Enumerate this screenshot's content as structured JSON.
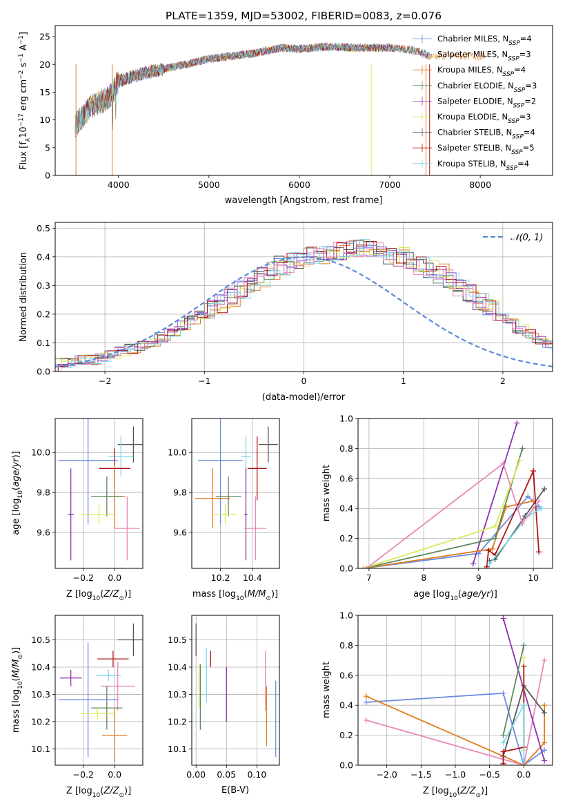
{
  "colors": {
    "chabrier_miles": "#6a8be0",
    "salpeter_miles": "#a061cf",
    "kroupa_miles": "#e07c1f",
    "chabrier_elodie": "#5e8a60",
    "salpeter_elodie": "#8e2fb0",
    "kroupa_elodie": "#d6ea58",
    "chabrier_stelib": "#555555",
    "salpeter_stelib": "#b01414",
    "kroupa_stelib": "#78d8e8",
    "pink": "#e887b8",
    "gauss": "#5a8ad6",
    "grid": "#b0b0b0"
  },
  "chart_data": [
    {
      "id": "spectrum",
      "type": "line",
      "title": "PLATE=1359, MJD=53002, FIBERID=0083, z=0.076",
      "xlabel": "wavelength [Angstrom, rest frame]",
      "ylabel": "Flux [f_λ 10^-17 erg cm^-2 s^-1 A^-1]",
      "xlim": [
        3300,
        8800
      ],
      "ylim": [
        0,
        27
      ],
      "xticks": [
        4000,
        5000,
        6000,
        7000,
        8000
      ],
      "yticks": [
        0,
        5,
        10,
        15,
        20,
        25
      ],
      "legend_position": "right",
      "continuum_x": [
        3520,
        3700,
        3900,
        4000,
        4300,
        4600,
        5000,
        5500,
        5800,
        6000,
        6300,
        6600,
        7000,
        7300,
        7440
      ],
      "continuum_y": [
        9.0,
        12.5,
        14.0,
        17.0,
        18.5,
        19.5,
        21.0,
        22.0,
        23.0,
        22.8,
        23.2,
        23.0,
        23.0,
        22.5,
        21.5
      ],
      "series": [
        {
          "name": "Chabrier MILES, N_SSP=4",
          "color_key": "chabrier_miles"
        },
        {
          "name": "Salpeter MILES, N_SSP=3",
          "color_key": "salpeter_miles"
        },
        {
          "name": "Kroupa MILES, N_SSP=4",
          "color_key": "kroupa_miles"
        },
        {
          "name": "Chabrier ELODIE, N_SSP=3",
          "color_key": "chabrier_elodie"
        },
        {
          "name": "Salpeter ELODIE, N_SSP=2",
          "color_key": "salpeter_elodie"
        },
        {
          "name": "Kroupa ELODIE, N_SSP=3",
          "color_key": "kroupa_elodie"
        },
        {
          "name": "Chabrier STELIB, N_SSP=4",
          "color_key": "chabrier_stelib"
        },
        {
          "name": "Salpeter STELIB, N_SSP=5",
          "color_key": "salpeter_stelib"
        },
        {
          "name": "Kroupa STELIB, N_SSP=4",
          "color_key": "kroupa_stelib"
        }
      ]
    },
    {
      "id": "residuals",
      "type": "line",
      "xlabel": "(data-model)/error",
      "ylabel": "Normed distribution",
      "xlim": [
        -2.5,
        2.5
      ],
      "ylim": [
        0,
        0.52
      ],
      "xticks": [
        -2,
        -1,
        0,
        1,
        2
      ],
      "yticks": [
        0.0,
        0.1,
        0.2,
        0.3,
        0.4,
        0.5
      ],
      "legend": "𝒩(0, 1)",
      "legend_position": "top-right",
      "bin_width": 0.1,
      "hist_center": [
        0.03,
        0.03,
        0.04,
        0.04,
        0.05,
        0.06,
        0.07,
        0.08,
        0.09,
        0.1,
        0.12,
        0.14,
        0.16,
        0.18,
        0.2,
        0.22,
        0.24,
        0.26,
        0.29,
        0.31,
        0.33,
        0.35,
        0.37,
        0.38,
        0.39,
        0.4,
        0.41,
        0.42,
        0.42,
        0.43,
        0.43,
        0.43,
        0.42,
        0.41,
        0.4,
        0.39,
        0.37,
        0.36,
        0.34,
        0.32,
        0.29,
        0.27,
        0.24,
        0.22,
        0.19,
        0.17,
        0.15,
        0.13,
        0.11,
        0.09,
        0.08,
        0.07,
        0.06,
        0.05,
        0.04,
        0.04,
        0.03,
        0.03,
        0.03,
        0.02
      ],
      "hist_start": -2.5
    },
    {
      "id": "age_vs_Z",
      "type": "scatter",
      "xlabel": "Z [log10(Z/Z⊙)]",
      "ylabel": "age [log10(age/yr)]",
      "xlim": [
        -0.38,
        0.18
      ],
      "ylim": [
        9.42,
        10.17
      ],
      "xticks": [
        -0.2,
        0.0
      ],
      "yticks": [
        9.6,
        9.8,
        10.0
      ],
      "points": [
        {
          "c": "chabrier_stelib",
          "x": 0.12,
          "y": 10.04,
          "xe": 0.1,
          "ye": 0.09
        },
        {
          "c": "kroupa_stelib",
          "x": 0.04,
          "y": 9.98,
          "xe": 0.08,
          "ye": 0.1
        },
        {
          "c": "chabrier_miles",
          "x": -0.17,
          "y": 9.96,
          "xe": 0.19,
          "ye": 0.32
        },
        {
          "c": "salpeter_stelib",
          "x": 0.0,
          "y": 9.92,
          "xe": 0.1,
          "ye": 0.1
        },
        {
          "c": "kroupa_miles",
          "x": 0.0,
          "y": 9.78,
          "xe": 0.07,
          "ye": 0.16
        },
        {
          "c": "chabrier_elodie",
          "x": -0.05,
          "y": 9.78,
          "xe": 0.1,
          "ye": 0.1
        },
        {
          "c": "salpeter_elodie",
          "x": -0.28,
          "y": 9.69,
          "xe": 0.02,
          "ye": 0.23
        },
        {
          "c": "kroupa_elodie",
          "x": -0.1,
          "y": 9.69,
          "xe": 0.11,
          "ye": 0.05
        },
        {
          "c": "pink",
          "x": 0.08,
          "y": 9.62,
          "xe": 0.08,
          "ye": 0.16
        }
      ]
    },
    {
      "id": "age_vs_mass",
      "type": "scatter",
      "xlabel": "mass [log10(M/M⊙)]",
      "xlim": [
        10.02,
        10.57
      ],
      "ylim": [
        9.42,
        10.17
      ],
      "xticks": [
        10.2,
        10.4
      ],
      "yticks": [
        9.6,
        9.8,
        10.0
      ],
      "points": [
        {
          "c": "chabrier_stelib",
          "x": 10.5,
          "y": 10.04,
          "xe": 0.06,
          "ye": 0.09
        },
        {
          "c": "kroupa_stelib",
          "x": 10.36,
          "y": 9.98,
          "xe": 0.03,
          "ye": 0.1
        },
        {
          "c": "chabrier_miles",
          "x": 10.2,
          "y": 9.96,
          "xe": 0.14,
          "ye": 0.32
        },
        {
          "c": "salpeter_stelib",
          "x": 10.43,
          "y": 9.92,
          "xe": 0.06,
          "ye": 0.16
        },
        {
          "c": "kroupa_miles",
          "x": 10.15,
          "y": 9.77,
          "xe": 0.11,
          "ye": 0.15
        },
        {
          "c": "chabrier_elodie",
          "x": 10.25,
          "y": 9.78,
          "xe": 0.08,
          "ye": 0.1
        },
        {
          "c": "salpeter_elodie",
          "x": 10.36,
          "y": 9.69,
          "xe": 0.01,
          "ye": 0.23
        },
        {
          "c": "kroupa_elodie",
          "x": 10.23,
          "y": 9.69,
          "xe": 0.07,
          "ye": 0.05
        },
        {
          "c": "pink",
          "x": 10.42,
          "y": 9.62,
          "xe": 0.07,
          "ye": 0.16
        }
      ]
    },
    {
      "id": "massweight_vs_age",
      "type": "line",
      "xlabel": "age [log10(age/yr)]",
      "ylabel": "mass weight",
      "xlim": [
        6.8,
        10.35
      ],
      "ylim": [
        0,
        1.0
      ],
      "xticks": [
        7,
        8,
        9,
        10
      ],
      "yticks": [
        0.0,
        0.2,
        0.4,
        0.6,
        0.8,
        1.0
      ],
      "series": [
        {
          "c": "chabrier_miles",
          "x": [
            6.9,
            9.0,
            9.9,
            10.1
          ],
          "y": [
            0.0,
            0.1,
            0.48,
            0.41
          ]
        },
        {
          "c": "salpeter_elodie",
          "x": [
            8.9,
            9.7
          ],
          "y": [
            0.03,
            0.97
          ]
        },
        {
          "c": "kroupa_miles",
          "x": [
            6.9,
            9.25,
            9.5,
            10.0
          ],
          "y": [
            0.0,
            0.13,
            0.41,
            0.45
          ]
        },
        {
          "c": "chabrier_elodie",
          "x": [
            6.9,
            9.3,
            9.8
          ],
          "y": [
            0.0,
            0.2,
            0.8
          ]
        },
        {
          "c": "kroupa_elodie",
          "x": [
            6.9,
            9.3,
            9.75
          ],
          "y": [
            0.0,
            0.28,
            0.72
          ]
        },
        {
          "c": "chabrier_stelib",
          "x": [
            9.2,
            9.3,
            9.85,
            10.2
          ],
          "y": [
            0.05,
            0.06,
            0.35,
            0.53
          ]
        },
        {
          "c": "salpeter_stelib",
          "x": [
            9.15,
            9.18,
            9.3,
            10.0,
            10.1
          ],
          "y": [
            0.01,
            0.12,
            0.09,
            0.65,
            0.11
          ]
        },
        {
          "c": "kroupa_stelib",
          "x": [
            9.2,
            9.9,
            10.15
          ],
          "y": [
            0.03,
            0.35,
            0.4
          ]
        },
        {
          "c": "pink",
          "x": [
            6.95,
            9.45,
            9.8,
            10.1
          ],
          "y": [
            0.0,
            0.7,
            0.3,
            0.45
          ]
        }
      ]
    },
    {
      "id": "mass_vs_Z",
      "type": "scatter",
      "xlabel": "Z [log10(Z/Z⊙)]",
      "ylabel": "mass [log10(M/M⊙)]",
      "xlim": [
        -0.38,
        0.18
      ],
      "ylim": [
        10.04,
        10.59
      ],
      "xticks": [
        -0.2,
        0.0
      ],
      "yticks": [
        10.1,
        10.2,
        10.3,
        10.4,
        10.5
      ],
      "points": [
        {
          "c": "chabrier_stelib",
          "x": 0.12,
          "y": 10.5,
          "xe": 0.1,
          "ye": 0.06
        },
        {
          "c": "salpeter_stelib",
          "x": -0.01,
          "y": 10.43,
          "xe": 0.1,
          "ye": 0.03
        },
        {
          "c": "kroupa_stelib",
          "x": -0.04,
          "y": 10.37,
          "xe": 0.08,
          "ye": 0.02
        },
        {
          "c": "salpeter_elodie",
          "x": -0.28,
          "y": 10.36,
          "xe": 0.07,
          "ye": 0.03
        },
        {
          "c": "pink",
          "x": 0.02,
          "y": 10.33,
          "xe": 0.11,
          "ye": 0.09
        },
        {
          "c": "chabrier_miles",
          "x": -0.17,
          "y": 10.28,
          "xe": 0.19,
          "ye": 0.21
        },
        {
          "c": "chabrier_elodie",
          "x": -0.05,
          "y": 10.25,
          "xe": 0.1,
          "ye": 0.08
        },
        {
          "c": "kroupa_elodie",
          "x": -0.11,
          "y": 10.23,
          "xe": 0.11,
          "ye": 0.02
        },
        {
          "c": "kroupa_miles",
          "x": 0.0,
          "y": 10.15,
          "xe": 0.08,
          "ye": 0.1
        }
      ]
    },
    {
      "id": "mass_vs_EBV",
      "type": "scatter",
      "xlabel": "E(B-V)",
      "xlim": [
        -0.007,
        0.137
      ],
      "ylim": [
        10.04,
        10.59
      ],
      "xticks": [
        0.0,
        0.05,
        0.1
      ],
      "yticks": [
        10.1,
        10.2,
        10.3,
        10.4,
        10.5
      ],
      "points": [
        {
          "c": "chabrier_stelib",
          "x": 0.0,
          "y": 10.5,
          "ye": 0.06
        },
        {
          "c": "salpeter_stelib",
          "x": 0.024,
          "y": 10.43,
          "ye": 0.03
        },
        {
          "c": "kroupa_stelib",
          "x": 0.017,
          "y": 10.37,
          "ye": 0.1
        },
        {
          "c": "kroupa_elodie",
          "x": 0.005,
          "y": 10.33,
          "ye": 0.08
        },
        {
          "c": "chabrier_elodie",
          "x": 0.007,
          "y": 10.29,
          "ye": 0.12
        },
        {
          "c": "salpeter_elodie",
          "x": 0.05,
          "y": 10.3,
          "ye": 0.1
        },
        {
          "c": "pink",
          "x": 0.114,
          "y": 10.35,
          "ye": 0.11
        },
        {
          "c": "kroupa_miles",
          "x": 0.116,
          "y": 10.22,
          "ye": 0.11
        },
        {
          "c": "chabrier_miles",
          "x": 0.131,
          "y": 10.21,
          "ye": 0.14
        }
      ]
    },
    {
      "id": "massweight_vs_Z",
      "type": "line",
      "xlabel": "Z [log10(Z/Z⊙)]",
      "ylabel": "mass weight",
      "xlim": [
        -2.42,
        0.42
      ],
      "ylim": [
        0,
        1.0
      ],
      "xticks": [
        -2.0,
        -1.5,
        -1.0,
        -0.5,
        0.0
      ],
      "yticks": [
        0.0,
        0.2,
        0.4,
        0.6,
        0.8,
        1.0
      ],
      "series": [
        {
          "c": "chabrier_miles",
          "x": [
            -2.3,
            -0.3,
            0.0,
            0.3
          ],
          "y": [
            0.42,
            0.48,
            0.0,
            0.1
          ]
        },
        {
          "c": "kroupa_miles",
          "x": [
            -2.3,
            0.0,
            0.3,
            0.3
          ],
          "y": [
            0.46,
            0.0,
            0.15,
            0.4
          ]
        },
        {
          "c": "pink",
          "x": [
            -2.3,
            0.0,
            0.3
          ],
          "y": [
            0.3,
            0.0,
            0.7
          ]
        },
        {
          "c": "salpeter_elodie",
          "x": [
            -0.3,
            0.3
          ],
          "y": [
            0.98,
            0.03
          ]
        },
        {
          "c": "chabrier_elodie",
          "x": [
            -0.3,
            0.0
          ],
          "y": [
            0.2,
            0.8
          ]
        },
        {
          "c": "kroupa_elodie",
          "x": [
            0.0,
            0.0
          ],
          "y": [
            0.1,
            0.72
          ]
        },
        {
          "c": "chabrier_stelib",
          "x": [
            -0.3,
            0.0,
            0.3
          ],
          "y": [
            0.06,
            0.53,
            0.35
          ]
        },
        {
          "c": "salpeter_stelib",
          "x": [
            -0.3,
            -0.3,
            0.0,
            0.0
          ],
          "y": [
            0.01,
            0.09,
            0.12,
            0.66
          ]
        },
        {
          "c": "kroupa_stelib",
          "x": [
            -0.3,
            0.0,
            0.0
          ],
          "y": [
            0.15,
            0.4,
            0.03
          ]
        }
      ]
    }
  ]
}
